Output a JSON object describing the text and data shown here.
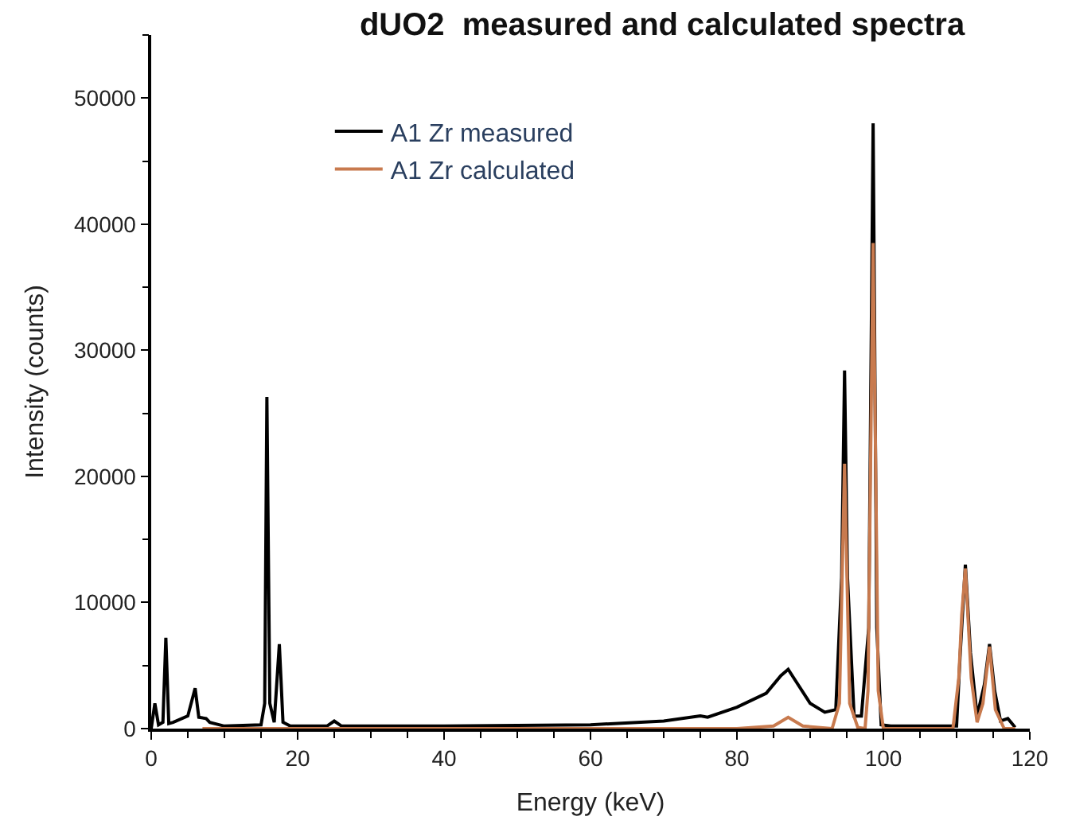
{
  "chart_data": {
    "type": "line",
    "title": "dUO2  measured and calculated spectra",
    "xlabel": "Energy (keV)",
    "ylabel": "Intensity (counts)",
    "xlim": [
      0,
      120
    ],
    "xticks": [
      0,
      20,
      40,
      60,
      80,
      100,
      120
    ],
    "ylim": [
      0,
      55000
    ],
    "yticks": [
      0,
      10000,
      20000,
      30000,
      40000,
      50000
    ],
    "legend": "top left",
    "marker": "none",
    "line_style": "solid",
    "series": [
      {
        "name": "A1 Zr measured",
        "color": "#000000",
        "x": [
          0,
          0.5,
          1,
          1.6,
          2,
          2.4,
          3,
          5,
          6,
          6.5,
          7.5,
          8,
          10,
          15,
          15.5,
          15.8,
          16.2,
          16.8,
          17.5,
          18,
          19,
          24,
          25,
          26,
          40,
          60,
          70,
          75,
          76,
          80,
          84,
          86,
          87,
          88,
          90,
          92,
          93.5,
          94.3,
          94.7,
          95.1,
          96,
          97,
          98,
          98.6,
          99.1,
          99.7,
          101,
          110,
          110.5,
          111.2,
          111.9,
          112.8,
          113.8,
          114.5,
          115.2,
          116,
          117,
          118
        ],
        "values": [
          0,
          2000,
          300,
          500,
          7200,
          400,
          500,
          1000,
          3200,
          900,
          800,
          500,
          200,
          300,
          2000,
          26300,
          2000,
          500,
          6700,
          500,
          200,
          200,
          600,
          200,
          200,
          300,
          600,
          1000,
          900,
          1700,
          2800,
          4200,
          4700,
          3800,
          2000,
          1300,
          1500,
          12000,
          28400,
          12000,
          1000,
          1000,
          8000,
          48000,
          8000,
          300,
          200,
          200,
          6000,
          13000,
          6000,
          1000,
          3500,
          6700,
          3000,
          600,
          800,
          100
        ]
      },
      {
        "name": "A1 Zr calculated",
        "color": "#c87a4e",
        "x": [
          7,
          80,
          85,
          87,
          89,
          93,
          94,
          94.7,
          95.4,
          96.5,
          97.5,
          97.9,
          98.6,
          99.3,
          100,
          109.5,
          110.3,
          110.7,
          111.2,
          112,
          112.8,
          113.6,
          114.5,
          115.3,
          116.5,
          118
        ],
        "values": [
          0,
          0,
          200,
          900,
          200,
          0,
          2000,
          21000,
          2000,
          100,
          0,
          3000,
          38500,
          3000,
          0,
          0,
          4000,
          9000,
          12700,
          4000,
          500,
          2000,
          6500,
          1500,
          0,
          0
        ]
      }
    ]
  }
}
